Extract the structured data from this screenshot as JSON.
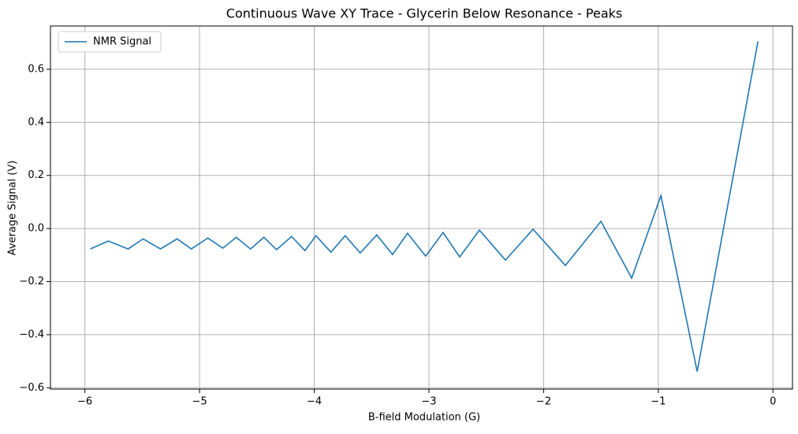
{
  "chart_data": {
    "type": "line",
    "title": "Continuous Wave XY Trace - Glycerin Below Resonance - Peaks",
    "x_label": "B-field Modulation (G)",
    "y_label": "Average Signal (V)",
    "x": [
      -5.953,
      -5.795,
      -5.623,
      -5.492,
      -5.341,
      -5.196,
      -5.072,
      -4.928,
      -4.797,
      -4.68,
      -4.556,
      -4.439,
      -4.329,
      -4.198,
      -4.081,
      -3.985,
      -3.854,
      -3.73,
      -3.599,
      -3.455,
      -3.317,
      -3.187,
      -3.028,
      -2.877,
      -2.732,
      -2.56,
      -2.333,
      -2.092,
      -1.81,
      -1.5,
      -1.232,
      -0.977,
      -0.661,
      -0.131
    ],
    "series": [
      {
        "name": "NMR Signal",
        "color": "#1f77b4",
        "values": [
          -0.077,
          -0.047,
          -0.077,
          -0.039,
          -0.077,
          -0.039,
          -0.077,
          -0.036,
          -0.074,
          -0.033,
          -0.077,
          -0.033,
          -0.08,
          -0.03,
          -0.083,
          -0.027,
          -0.089,
          -0.027,
          -0.092,
          -0.024,
          -0.098,
          -0.018,
          -0.104,
          -0.015,
          -0.107,
          -0.006,
          -0.119,
          -0.003,
          -0.139,
          0.027,
          -0.187,
          0.124,
          -0.539,
          0.705
        ]
      }
    ],
    "xlim": [
      -6.3,
      0.17
    ],
    "ylim": [
      -0.605,
      0.763
    ],
    "xticks": [
      {
        "value": -6,
        "label": "−6"
      },
      {
        "value": -5,
        "label": "−5"
      },
      {
        "value": -4,
        "label": "−4"
      },
      {
        "value": -3,
        "label": "−3"
      },
      {
        "value": -2,
        "label": "−2"
      },
      {
        "value": -1,
        "label": "−1"
      },
      0
    ],
    "yticks": [
      {
        "value": -0.6,
        "label": "−0.6"
      },
      {
        "value": -0.4,
        "label": "−0.4"
      },
      {
        "value": -0.2,
        "label": "−0.2"
      },
      {
        "value": 0,
        "label": "0.0"
      },
      0.2,
      0.4,
      0.6
    ],
    "grid": true,
    "legend": "upper left"
  }
}
